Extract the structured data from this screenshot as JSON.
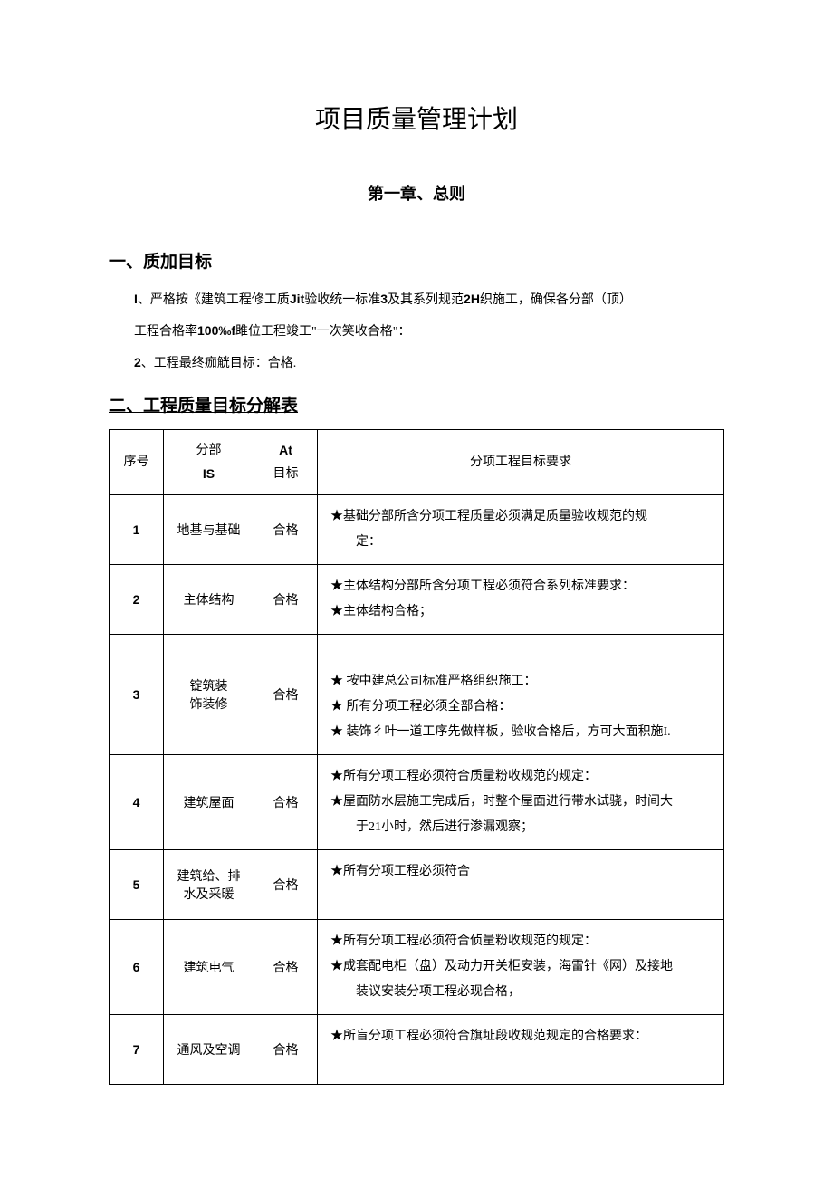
{
  "document": {
    "title": "项目质量管理计划",
    "chapter": "第一章、总则"
  },
  "section1": {
    "heading": "一、质加目标",
    "p1_prefix": "I",
    "p1_text": "、严格按《建筑工程修工质",
    "p1_bold1": "Jit",
    "p1_mid1": "验收统一标准",
    "p1_bold2": "3",
    "p1_mid2": "及其系列规范",
    "p1_bold3": "2H",
    "p1_end": "织施工，确保各分部（顶）",
    "p2_text1": "工程合格率",
    "p2_bold": "100‰f",
    "p2_text2": "雎位工程竣工\"一次笑收合格\"：",
    "p3_prefix": "2",
    "p3_text": "、工程最终痂觥目标：合格."
  },
  "section2": {
    "heading": "二、工程质量目标分解表"
  },
  "table": {
    "headers": {
      "seq": "序号",
      "part_top": "分部",
      "part_bot": "IS",
      "goal_top": "At",
      "goal_bot": "目标",
      "req": "分项工程目标要求"
    },
    "col_widths": {
      "seq": 60,
      "part": 100,
      "goal": 70
    },
    "border_color": "#000000",
    "font_size": 14,
    "rows": [
      {
        "seq": "1",
        "part": "地基与基础",
        "goal": "合格",
        "req": [
          "★基础分部所含分项工程质量必须满足质量验收规范的规",
          "　　定："
        ]
      },
      {
        "seq": "2",
        "part": "主体结构",
        "goal": "合格",
        "req": [
          "★主体结构分部所含分项工程必须符合系列标准要求：",
          "★主体结构合格；"
        ]
      },
      {
        "seq": "3",
        "part": "锭筑装\n饰装修",
        "goal": "合格",
        "req": [
          "",
          "★ 按中建总公司标准严格组织施工：",
          "★ 所有分项工程必须全部合格：",
          "★ 装饰彳叶一道工序先做样板，验收合格后，方可大面积施I."
        ]
      },
      {
        "seq": "4",
        "part": "建筑屋面",
        "goal": "合格",
        "req": [
          "★所有分项工程必须符合质量粉收规范的规定：",
          "★屋面防水层施工完成后，时整个屋面进行带水试骁，时间大",
          "　　于21小时，然后进行渗漏观察；"
        ]
      },
      {
        "seq": "5",
        "part": "建筑给、排\n水及采暖",
        "goal": "合格",
        "req": [
          "★所有分项工程必须符合",
          ""
        ]
      },
      {
        "seq": "6",
        "part": "建筑电气",
        "goal": "合格",
        "req": [
          "★所有分项工程必须符合侦量粉收规范的规定：",
          "★成套配电柜（盘）及动力开关柜安装，海雷针《网）及接地",
          "　　装议安装分项工程必现合格，"
        ]
      },
      {
        "seq": "7",
        "part": "通风及空调",
        "goal": "合格",
        "req": [
          "★所盲分项工程必须符合旗址段收规范规定的合格要求：",
          ""
        ]
      }
    ]
  }
}
